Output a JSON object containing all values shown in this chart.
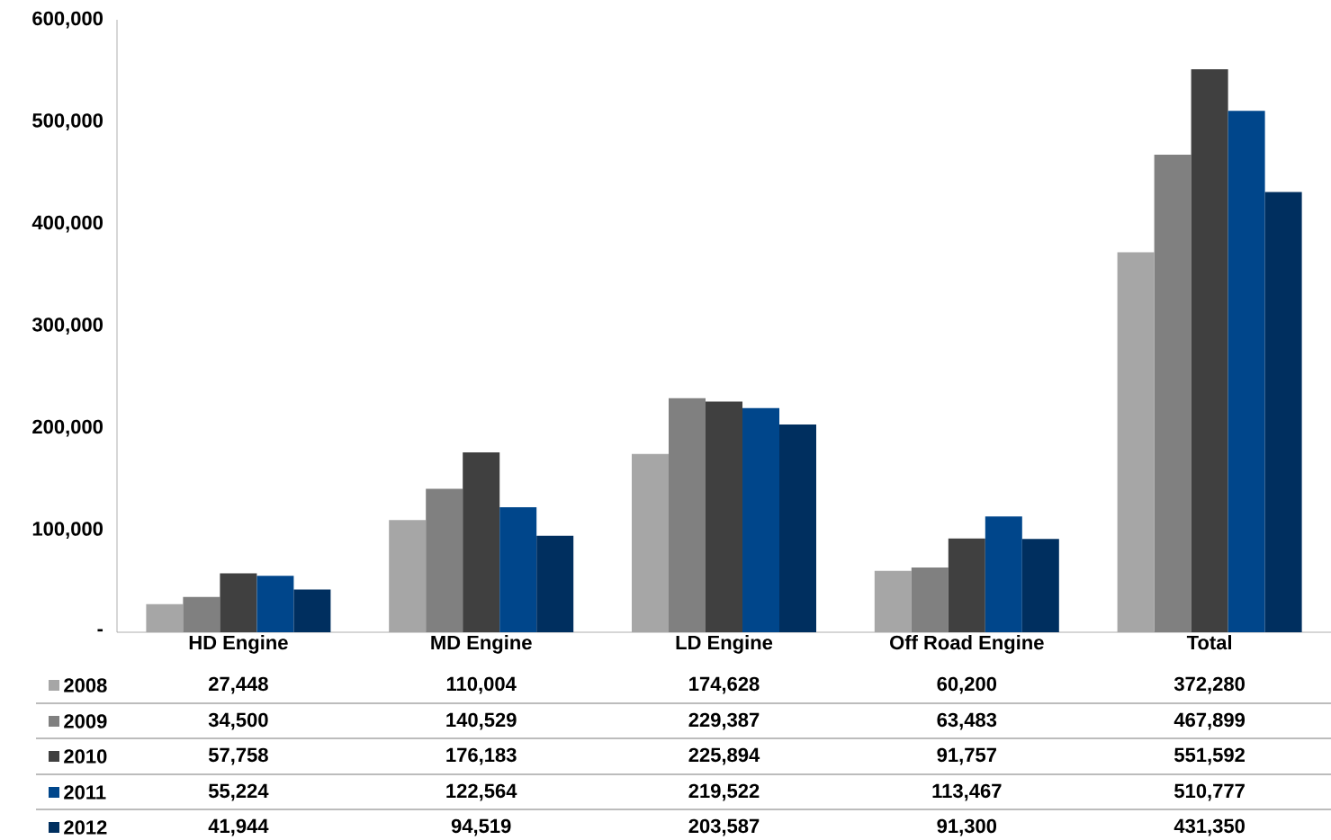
{
  "chart_data": {
    "type": "bar",
    "categories": [
      "HD Engine",
      "MD Engine",
      "LD Engine",
      "Off Road Engine",
      "Total"
    ],
    "series": [
      {
        "name": "2008",
        "color": "#a6a6a6",
        "values": [
          27448,
          110004,
          174628,
          60200,
          372280
        ],
        "value_labels": [
          "27,448",
          "110,004",
          "174,628",
          "60,200",
          "372,280"
        ]
      },
      {
        "name": "2009",
        "color": "#808080",
        "values": [
          34500,
          140529,
          229387,
          63483,
          467899
        ],
        "value_labels": [
          "34,500",
          "140,529",
          "229,387",
          "63,483",
          "467,899"
        ]
      },
      {
        "name": "2010",
        "color": "#404040",
        "values": [
          57758,
          176183,
          225894,
          91757,
          551592
        ],
        "value_labels": [
          "57,758",
          "176,183",
          "225,894",
          "91,757",
          "551,592"
        ]
      },
      {
        "name": "2011",
        "color": "#00468b",
        "values": [
          55224,
          122564,
          219522,
          113467,
          510777
        ],
        "value_labels": [
          "55,224",
          "122,564",
          "219,522",
          "113,467",
          "510,777"
        ]
      },
      {
        "name": "2012",
        "color": "#002f5f",
        "values": [
          41944,
          94519,
          203587,
          91300,
          431350
        ],
        "value_labels": [
          "41,944",
          "94,519",
          "203,587",
          "91,300",
          "431,350"
        ]
      }
    ],
    "ylim": [
      0,
      600000
    ],
    "yticks": [
      {
        "value": 0,
        "label": "-"
      },
      {
        "value": 100000,
        "label": "100,000"
      },
      {
        "value": 200000,
        "label": "200,000"
      },
      {
        "value": 300000,
        "label": "300,000"
      },
      {
        "value": 400000,
        "label": "400,000"
      },
      {
        "value": 500000,
        "label": "500,000"
      },
      {
        "value": 600000,
        "label": "600,000"
      }
    ],
    "legend": "bottom"
  }
}
